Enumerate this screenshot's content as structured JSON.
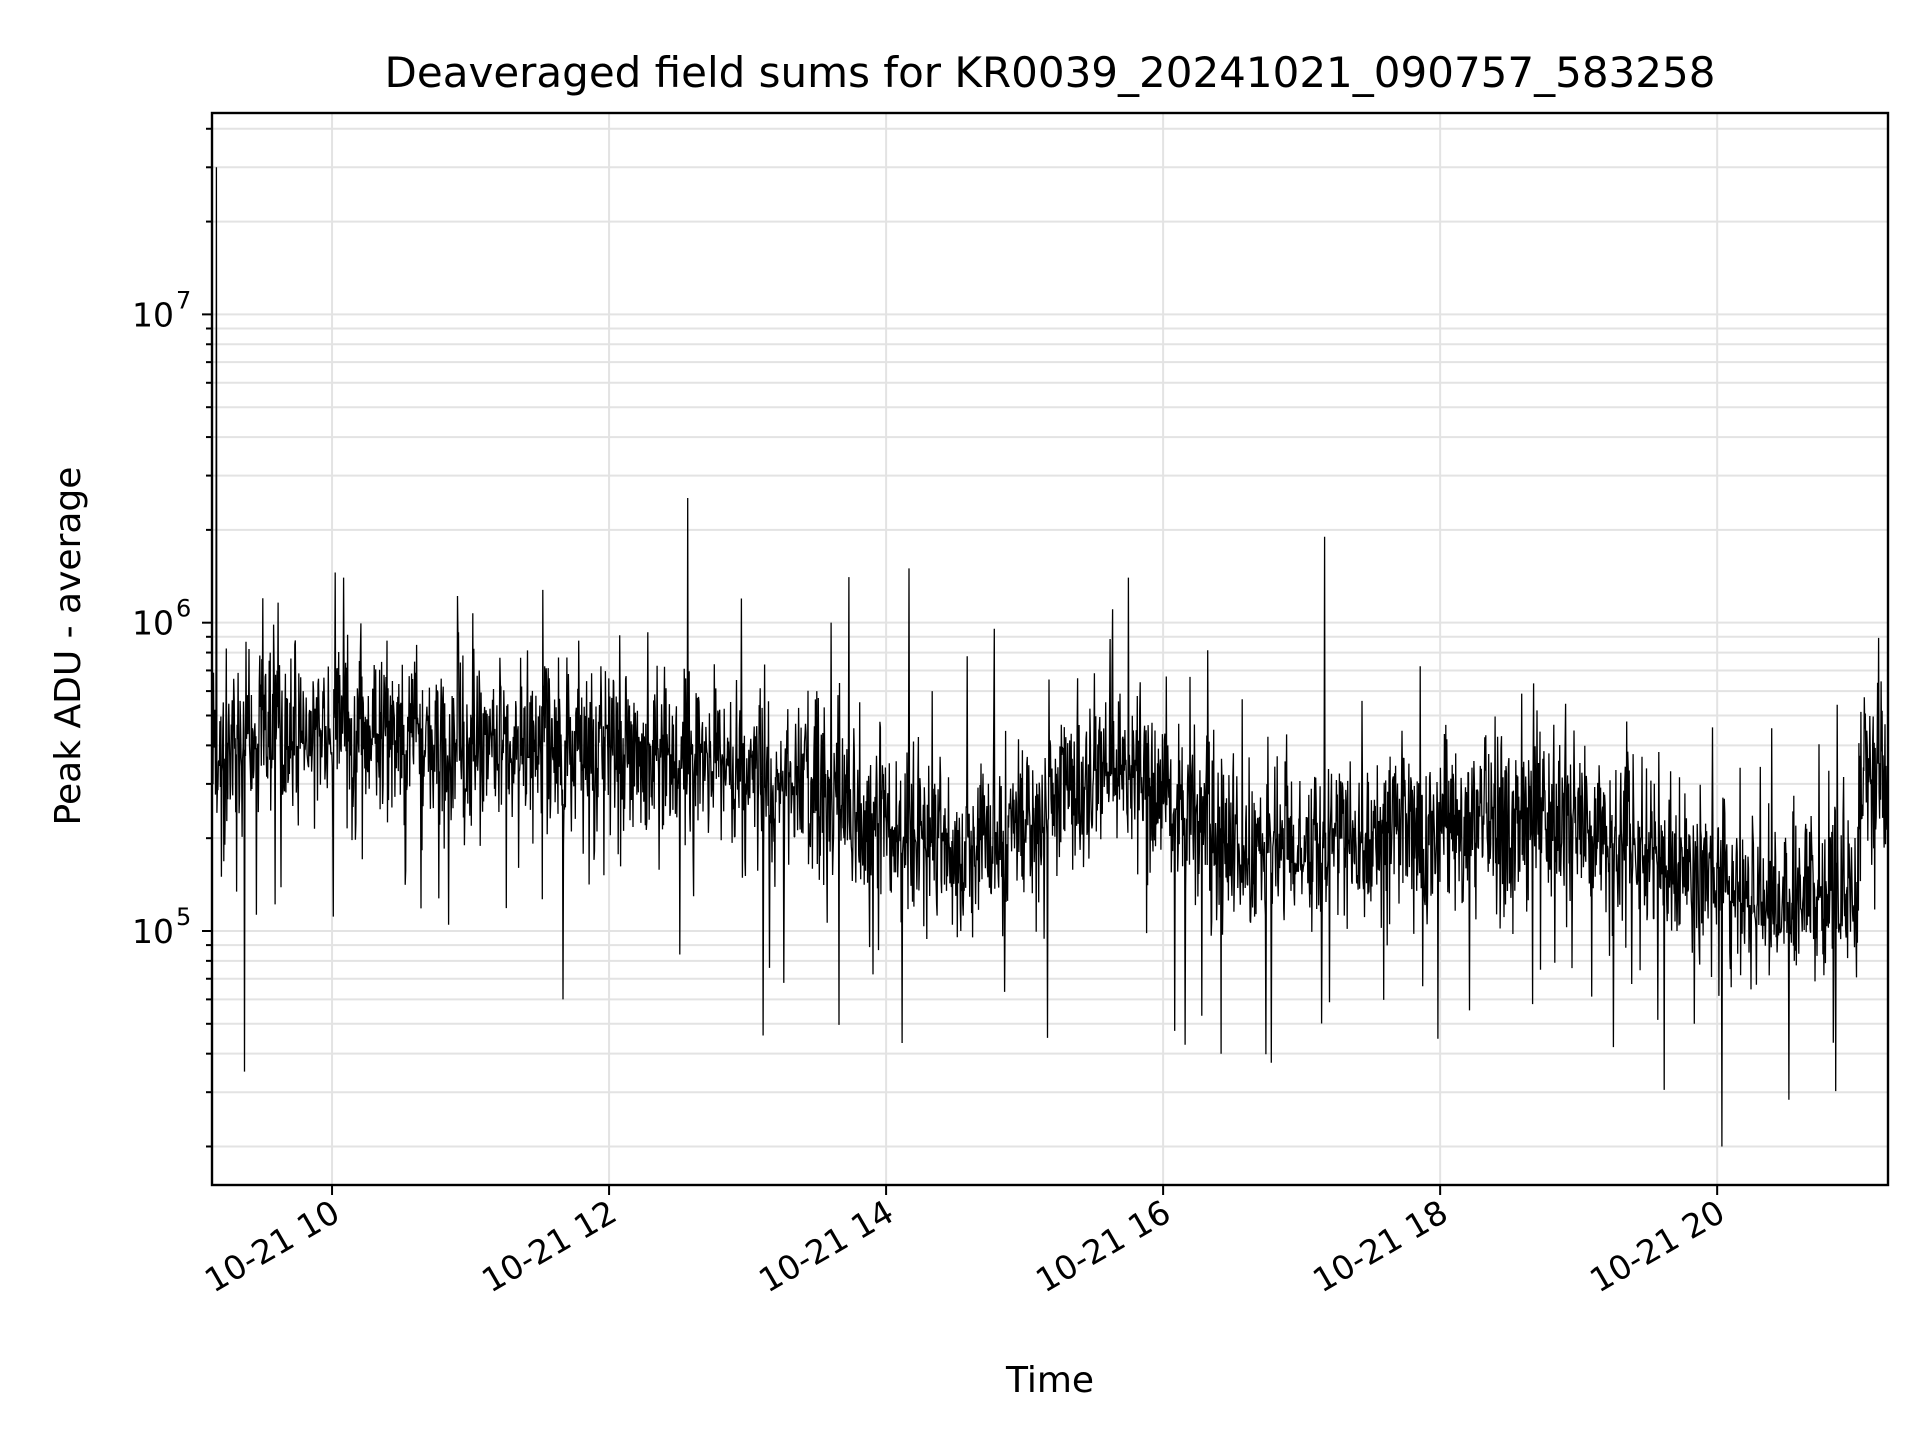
{
  "chart_data": {
    "type": "line",
    "title": "Deaveraged field sums for KR0039_20241021_090757_583258",
    "xlabel": "Time",
    "ylabel": "Peak ADU - average",
    "yscale": "log",
    "grid": true,
    "xlim": [
      "2024-10-21 09:08",
      "2024-10-21 21:14"
    ],
    "ylim": [
      15000,
      45000000
    ],
    "xticks": [
      "10-21 10",
      "10-21 12",
      "10-21 14",
      "10-21 16",
      "10-21 18",
      "10-21 20"
    ],
    "xtick_hours": [
      10,
      12,
      14,
      16,
      18,
      20
    ],
    "yticks": [
      {
        "value": 100000,
        "base": "10",
        "exp": "5"
      },
      {
        "value": 1000000,
        "base": "10",
        "exp": "6"
      },
      {
        "value": 10000000,
        "base": "10",
        "exp": "7"
      }
    ],
    "series": [
      {
        "name": "",
        "color": "#000000",
        "x": [
          "2024-10-21 09:08",
          "2024-10-21 09:10",
          "2024-10-21 09:11",
          "2024-10-21 09:12",
          "2024-10-21 09:14",
          "2024-10-21 09:16",
          "2024-10-21 09:22",
          "2024-10-21 09:24",
          "2024-10-21 09:30",
          "2024-10-21 09:40",
          "2024-10-21 09:50",
          "2024-10-21 10:00",
          "2024-10-21 10:05",
          "2024-10-21 10:12",
          "2024-10-21 10:20",
          "2024-10-21 10:35",
          "2024-10-21 10:50",
          "2024-10-21 10:55",
          "2024-10-21 11:00",
          "2024-10-21 11:20",
          "2024-10-21 11:35",
          "2024-10-21 11:40",
          "2024-10-21 12:00",
          "2024-10-21 12:20",
          "2024-10-21 12:45",
          "2024-10-21 13:00",
          "2024-10-21 13:20",
          "2024-10-21 13:40",
          "2024-10-21 14:00",
          "2024-10-21 14:10",
          "2024-10-21 14:20",
          "2024-10-21 14:30",
          "2024-10-21 14:45",
          "2024-10-21 15:00",
          "2024-10-21 15:10",
          "2024-10-21 15:20",
          "2024-10-21 15:40",
          "2024-10-21 15:45",
          "2024-10-21 16:00",
          "2024-10-21 16:20",
          "2024-10-21 16:25",
          "2024-10-21 16:40",
          "2024-10-21 17:00",
          "2024-10-21 17:10",
          "2024-10-21 17:20",
          "2024-10-21 17:40",
          "2024-10-21 18:00",
          "2024-10-21 18:20",
          "2024-10-21 18:40",
          "2024-10-21 19:00",
          "2024-10-21 19:15",
          "2024-10-21 19:20",
          "2024-10-21 19:40",
          "2024-10-21 19:50",
          "2024-10-21 20:00",
          "2024-10-21 20:02",
          "2024-10-21 20:10",
          "2024-10-21 20:30",
          "2024-10-21 20:50",
          "2024-10-21 21:00",
          "2024-10-21 21:02",
          "2024-10-21 21:05",
          "2024-10-21 21:14"
        ],
        "y": [
          700000,
          30000000,
          800000,
          150000,
          400000,
          600000,
          35000,
          500000,
          1200000,
          400000,
          450000,
          420000,
          1400000,
          450000,
          400000,
          420000,
          800000,
          430000,
          400000,
          380000,
          420000,
          60000,
          430000,
          420000,
          400000,
          380000,
          350000,
          250000,
          280000,
          1500000,
          600000,
          200000,
          180000,
          200000,
          45000,
          250000,
          300000,
          1400000,
          500000,
          230000,
          40000,
          180000,
          200000,
          1900000,
          190000,
          200000,
          230000,
          220000,
          240000,
          250000,
          42000,
          260000,
          220000,
          50000,
          130000,
          20000,
          150000,
          140000,
          140000,
          130000,
          350000,
          500000,
          350000
        ]
      }
    ]
  }
}
